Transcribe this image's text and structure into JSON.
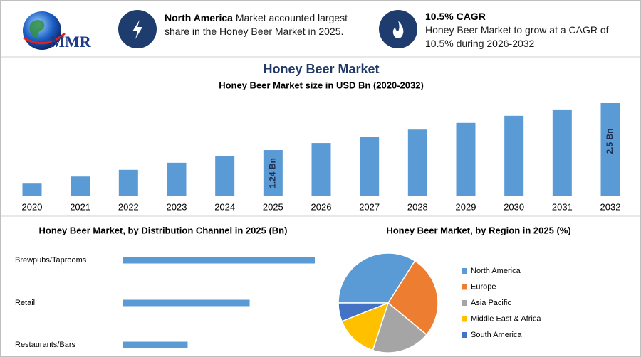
{
  "header": {
    "logo": "MMR",
    "highlights": [
      {
        "title": "North America",
        "text": "Market accounted largest share in the Honey Beer Market in 2025."
      },
      {
        "title": "10.5% CAGR",
        "text": "Honey Beer Market to grow at a CAGR of 10.5% during 2026-2032"
      }
    ]
  },
  "chart_data": [
    {
      "type": "bar",
      "title": "Honey Beer Market",
      "subtitle": "Honey Beer Market size in USD Bn (2020-2032)",
      "categories": [
        "2020",
        "2021",
        "2022",
        "2023",
        "2024",
        "2025",
        "2026",
        "2027",
        "2028",
        "2029",
        "2030",
        "2031",
        "2032"
      ],
      "values": [
        0.34,
        0.53,
        0.71,
        0.9,
        1.07,
        1.24,
        1.43,
        1.6,
        1.79,
        1.97,
        2.16,
        2.33,
        2.5
      ],
      "value_labels": [
        null,
        null,
        null,
        null,
        null,
        "1.24 Bn",
        null,
        null,
        null,
        null,
        null,
        null,
        "2.5 Bn"
      ],
      "color": "#5b9bd5"
    },
    {
      "type": "hbar",
      "title": "Honey Beer Market, by Distribution Channel in 2025 (Bn)",
      "categories": [
        "Brewpubs/Taprooms",
        "Retail",
        "Restaurants/Bars"
      ],
      "values": [
        0.62,
        0.41,
        0.21
      ],
      "color": "#5b9bd5"
    },
    {
      "type": "pie",
      "title": "Honey Beer Market, by Region in 2025 (%)",
      "categories": [
        "North America",
        "Europe",
        "Asia Pacific",
        "Middle East & Africa",
        "South America"
      ],
      "values": [
        34,
        27,
        19,
        14,
        6
      ],
      "colors": [
        "#5b9bd5",
        "#ed7d31",
        "#a5a5a5",
        "#ffc000",
        "#4472c4"
      ]
    }
  ]
}
